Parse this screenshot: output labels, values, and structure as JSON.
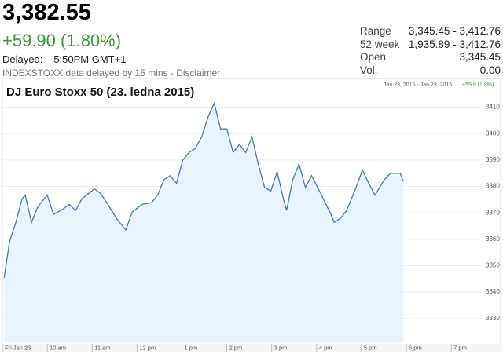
{
  "quote": {
    "price": "3,382.55",
    "change": "+59.90 (1.80%)",
    "delayed_label": "Delayed:",
    "delayed_time": "5:50PM GMT+1",
    "source": "INDEXSTOXX data delayed by 15 mins - Disclaimer",
    "stats": [
      {
        "label": "Range",
        "value": "3,345.45 - 3,412.76"
      },
      {
        "label": "52 week",
        "value": "1,935.89 - 3,412.76"
      },
      {
        "label": "Open",
        "value": "3,345.45"
      },
      {
        "label": "Vol.",
        "value": "0.00"
      }
    ]
  },
  "chart_data": {
    "type": "area",
    "title": "DJ Euro Stoxx 50 (23. ledna 2015)",
    "date_range": "Jan 23, 2015 - Jan 23, 2015",
    "change_label": "+59.9 (1.8%)",
    "color": "#4a78b0",
    "fill": "#e9f3fc",
    "reference_line": 3322.65,
    "grid": true,
    "x": [
      9.04,
      9.16,
      9.3,
      9.44,
      9.51,
      9.65,
      9.79,
      10.0,
      10.14,
      10.35,
      10.49,
      10.63,
      10.77,
      11.05,
      11.19,
      11.33,
      11.54,
      11.68,
      11.75,
      11.89,
      12.11,
      12.32,
      12.46,
      12.6,
      12.74,
      12.88,
      13.02,
      13.16,
      13.3,
      13.44,
      13.58,
      13.72,
      13.86,
      14.0,
      14.14,
      14.28,
      14.42,
      14.56,
      14.7,
      14.84,
      14.98,
      15.12,
      15.26,
      15.33,
      15.47,
      15.61,
      15.75,
      15.89,
      16.11,
      16.32,
      16.39,
      16.53,
      16.67,
      16.88,
      17.02,
      17.16,
      17.3,
      17.51,
      17.65,
      17.86,
      17.93
    ],
    "values": [
      3345.5,
      3359.1,
      3366.4,
      3375.3,
      3376.7,
      3366.4,
      3372.3,
      3376.7,
      3369.4,
      3371.4,
      3373.2,
      3370.9,
      3375.3,
      3379.1,
      3377.3,
      3373.8,
      3367.9,
      3365.0,
      3363.5,
      3370.3,
      3373.2,
      3373.8,
      3376.7,
      3382.6,
      3384.1,
      3381.2,
      3390.0,
      3392.9,
      3394.4,
      3398.8,
      3406.2,
      3411.5,
      3401.8,
      3401.8,
      3392.9,
      3395.9,
      3392.9,
      3398.8,
      3388.5,
      3379.7,
      3378.2,
      3385.6,
      3375.3,
      3370.9,
      3382.6,
      3388.5,
      3379.7,
      3384.1,
      3376.7,
      3369.4,
      3366.4,
      3367.9,
      3370.9,
      3379.7,
      3386.2,
      3381.2,
      3376.7,
      3382.6,
      3385.0,
      3385.0,
      3382.0
    ],
    "xlim": [
      9,
      20.1
    ],
    "xticks": [
      {
        "value": 9,
        "label": "Fri Jan 23"
      },
      {
        "value": 10,
        "label": "10 am"
      },
      {
        "value": 11,
        "label": "11 am"
      },
      {
        "value": 12,
        "label": "12 pm"
      },
      {
        "value": 13,
        "label": "1 pm"
      },
      {
        "value": 14,
        "label": "2 pm"
      },
      {
        "value": 15,
        "label": "3 pm"
      },
      {
        "value": 16,
        "label": "4 pm"
      },
      {
        "value": 17,
        "label": "5 pm"
      },
      {
        "value": 18,
        "label": "6 pm"
      },
      {
        "value": 19,
        "label": "7 pm"
      }
    ],
    "ylim": [
      3321,
      3420
    ],
    "yticks": [
      3330,
      3340,
      3350,
      3360,
      3370,
      3380,
      3390,
      3400,
      3410
    ]
  }
}
